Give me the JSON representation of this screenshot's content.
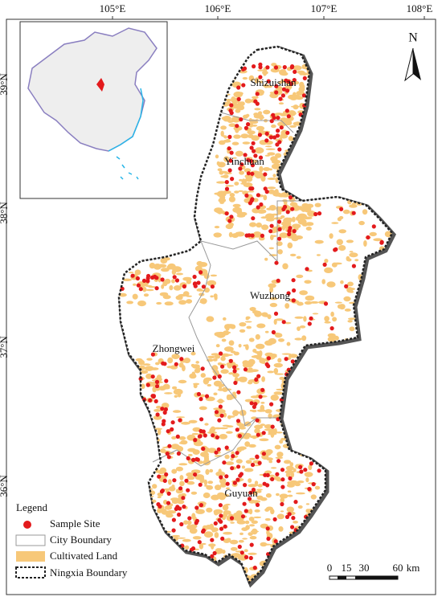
{
  "map": {
    "grid_labels": {
      "top": [
        "105°E",
        "106°E",
        "107°E",
        "108°E"
      ],
      "left": [
        "39°N",
        "38°N",
        "37°N",
        "36°N"
      ]
    },
    "north": "N",
    "cities": [
      "Shizuishan",
      "Yinchuan",
      "Wuzhong",
      "Zhongwei",
      "Guyuan"
    ],
    "legend": {
      "title": "Legend",
      "items": [
        "Sample Site",
        "City Boundary",
        "Cultivated Land",
        "Ningxia Boundary"
      ]
    },
    "scale": {
      "ticks": [
        0,
        15,
        30,
        60
      ],
      "unit": "km"
    }
  }
}
